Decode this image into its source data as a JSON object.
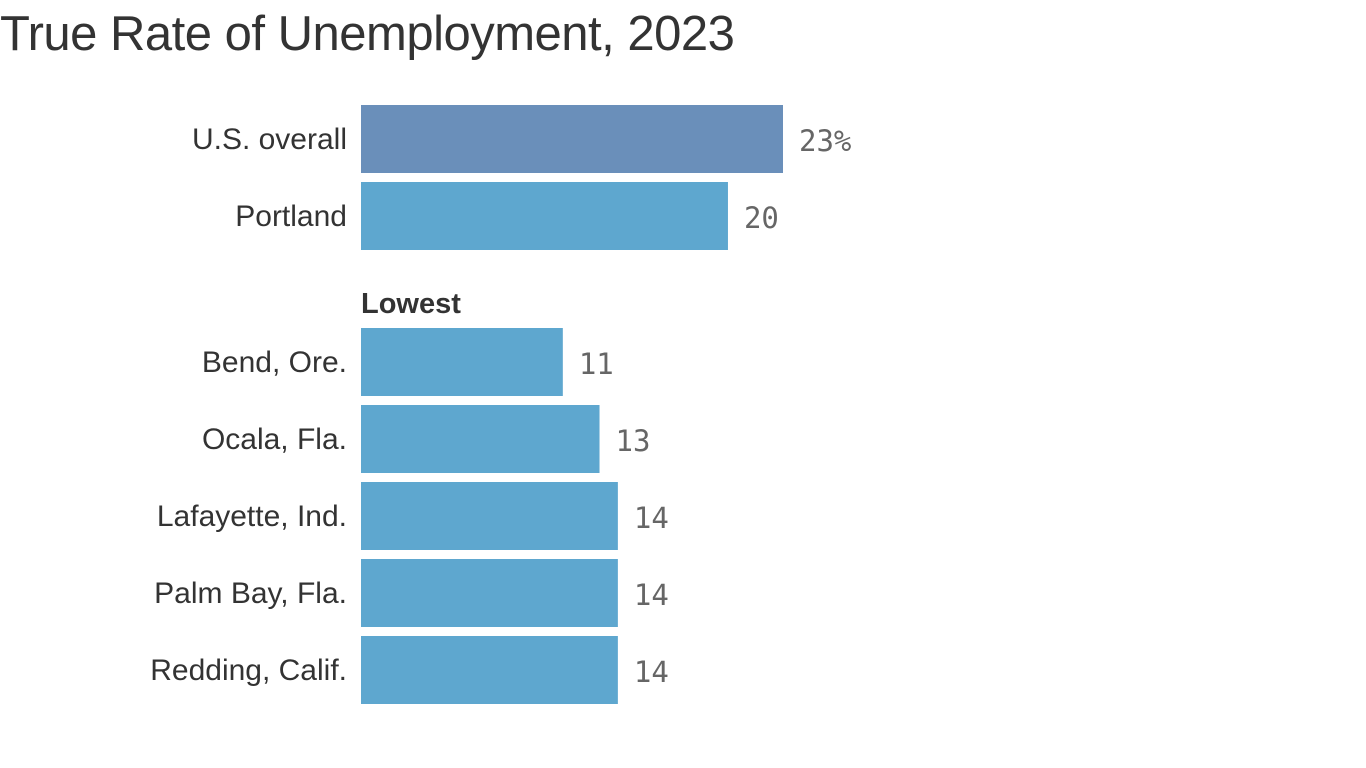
{
  "chart_data": {
    "type": "bar",
    "orientation": "horizontal",
    "title": "True Rate of Unemployment, 2023",
    "value_unit": "%",
    "groups": [
      {
        "label": "",
        "items": [
          {
            "category": "U.S. overall",
            "value": 23,
            "value_label": "23%",
            "color": "#6a8fba"
          },
          {
            "category": "Portland",
            "value": 20,
            "value_label": "20",
            "color": "#5ea7cf"
          }
        ]
      },
      {
        "label": "Lowest",
        "items": [
          {
            "category": "Bend, Ore.",
            "value": 11,
            "value_label": "11",
            "color": "#5ea7cf"
          },
          {
            "category": "Ocala, Fla.",
            "value": 13,
            "value_label": "13",
            "color": "#5ea7cf"
          },
          {
            "category": "Lafayette, Ind.",
            "value": 14,
            "value_label": "14",
            "color": "#5ea7cf"
          },
          {
            "category": "Palm Bay, Fla.",
            "value": 14,
            "value_label": "14",
            "color": "#5ea7cf"
          },
          {
            "category": "Redding, Calif.",
            "value": 14,
            "value_label": "14",
            "color": "#5ea7cf"
          }
        ]
      }
    ],
    "xlim": [
      0,
      23
    ],
    "grid": false,
    "legend": "none"
  }
}
